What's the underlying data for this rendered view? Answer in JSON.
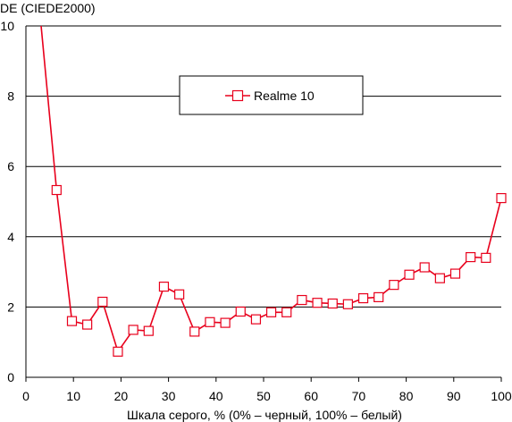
{
  "chart_data": {
    "type": "line",
    "xlabel": "Шкала серого, % (0% – черный, 100% – белый)",
    "ylabel": "DE (CIEDE2000)",
    "xlim": [
      0,
      100
    ],
    "ylim": [
      0,
      10
    ],
    "xticks": [
      0,
      10,
      20,
      30,
      40,
      50,
      60,
      70,
      80,
      90,
      100
    ],
    "yticks": [
      0,
      2,
      4,
      6,
      8,
      10
    ],
    "grid": "horizontal",
    "legend_position": "top-center",
    "series": [
      {
        "name": "Realme 10",
        "color": "#e8001c",
        "marker": "open-square",
        "line_start": [
          3.2,
          10.0
        ],
        "x": [
          6.45,
          9.68,
          12.9,
          16.13,
          19.35,
          22.58,
          25.81,
          29.03,
          32.26,
          35.48,
          38.71,
          41.94,
          45.16,
          48.39,
          51.61,
          54.84,
          58.06,
          61.29,
          64.52,
          67.74,
          70.97,
          74.19,
          77.42,
          80.65,
          83.87,
          87.1,
          90.32,
          93.55,
          96.77,
          100
        ],
        "y": [
          5.33,
          1.6,
          1.5,
          2.15,
          0.73,
          1.35,
          1.32,
          2.58,
          2.36,
          1.3,
          1.57,
          1.55,
          1.87,
          1.65,
          1.85,
          1.85,
          2.2,
          2.12,
          2.1,
          2.08,
          2.25,
          2.28,
          2.63,
          2.92,
          3.13,
          2.82,
          2.95,
          3.42,
          3.4,
          5.1
        ]
      }
    ]
  }
}
